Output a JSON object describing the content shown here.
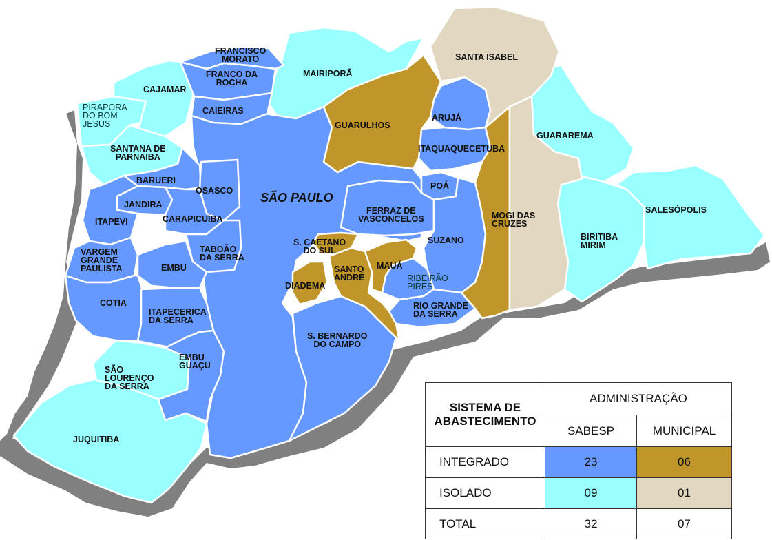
{
  "colors": {
    "sabesp_integrado": "#6699ff",
    "sabesp_isolado": "#99ffff",
    "municipal_integrado": "#c0962a",
    "municipal_isolado": "#e2d8c2",
    "shadow": "#808080",
    "border": "#ffffff"
  },
  "municipalities": {
    "sao_paulo": "SÃO PAULO",
    "francisco_morato": "FRANCISCO\nMORATO",
    "franco_da_rocha": "FRANCO DA\nROCHA",
    "mairipora": "MAIRIPORÃ",
    "cajamar": "CAJAMAR",
    "caieiras": "CAIEIRAS",
    "pirapora": "PIRAPORA\nDO BOM\nJESUS",
    "santana_de_parnaiba": "SANTANA DE\nPARNAIBA",
    "barueri": "BARUERI",
    "osasco": "OSASCO",
    "jandira": "JANDIRA",
    "itapevi": "ITAPEVI",
    "carapicuiba": "CARAPICUÍBA",
    "vargem_grande": "VARGEM\nGRANDE\nPAULISTA",
    "taboao": "TABOÃO\nDA SERRA",
    "embu": "EMBU",
    "cotia": "COTIA",
    "itapecerica": "ITAPECERICA\nDA SERRA",
    "embu_guacu": "EMBU\nGUAÇU",
    "sao_lourenco": "SÃO\nLOURENÇO\nDA SERRA",
    "juquitiba": "JUQUITIBA",
    "guarulhos": "GUARULHOS",
    "santa_isabel": "SANTA ISABEL",
    "aruja": "ARUJÁ",
    "itaquaquecetuba": "ITAQUAQUECETUBA",
    "guararema": "GUARAREMA",
    "poa": "POÁ",
    "ferraz": "FERRAZ DE\nVASCONCELOS",
    "mogi": "MOGI DAS\nCRUZES",
    "salesopolis": "SALESÓPOLIS",
    "biritiba": "BIRITIBA\nMIRIM",
    "suzano": "SUZANO",
    "sao_caetano": "S. CAETANO\nDO SUL",
    "santo_andre": "SANTO\nANDRÉ",
    "maua": "MAUÁ",
    "diadema": "DIADEMA",
    "ribeirao_pires": "RIBEIRÃO\nPIRES",
    "rio_grande": "RIO GRANDE\nDA SERRA",
    "sao_bernardo": "S. BERNARDO\nDO CAMPO"
  },
  "legend": {
    "system_header": "SISTEMA DE\nABASTECIMENTO",
    "admin_header": "ADMINISTRAÇÃO",
    "sabesp": "SABESP",
    "municipal": "MUNICIPAL",
    "rows": [
      {
        "label": "INTEGRADO",
        "sabesp": "23",
        "municipal": "06"
      },
      {
        "label": "ISOLADO",
        "sabesp": "09",
        "municipal": "01"
      },
      {
        "label": "TOTAL",
        "sabesp": "32",
        "municipal": "07"
      }
    ]
  }
}
